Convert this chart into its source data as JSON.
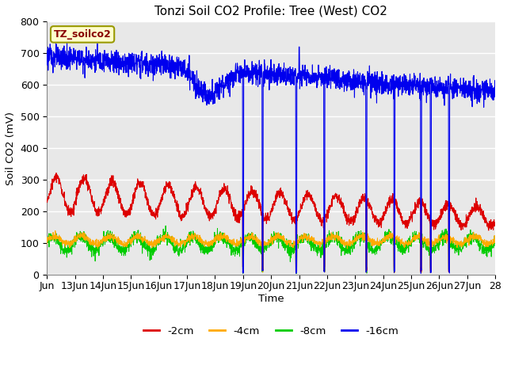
{
  "title": "Tonzi Soil CO2 Profile: Tree (West) CO2",
  "ylabel": "Soil CO2 (mV)",
  "xlabel": "Time",
  "text_label": "TZ_soilco2",
  "fig_bg_color": "#ffffff",
  "plot_bg_color": "#e8e8e8",
  "ylim": [
    0,
    800
  ],
  "yticks": [
    0,
    100,
    200,
    300,
    400,
    500,
    600,
    700,
    800
  ],
  "colors": {
    "2cm": "#dd0000",
    "4cm": "#ffaa00",
    "8cm": "#00cc00",
    "16cm": "#0000ee"
  },
  "legend": [
    "-2cm",
    "-4cm",
    "-8cm",
    "-16cm"
  ],
  "legend_colors": [
    "#dd0000",
    "#ffaa00",
    "#00cc00",
    "#0000ee"
  ],
  "xtick_labels": [
    "Jun",
    "13Jun",
    "14Jun",
    "15Jun",
    "16Jun",
    "17Jun",
    "18Jun",
    "19Jun",
    "20Jun",
    "21Jun",
    "22Jun",
    "23Jun",
    "24Jun",
    "25Jun",
    "26Jun",
    "27Jun",
    "28"
  ]
}
